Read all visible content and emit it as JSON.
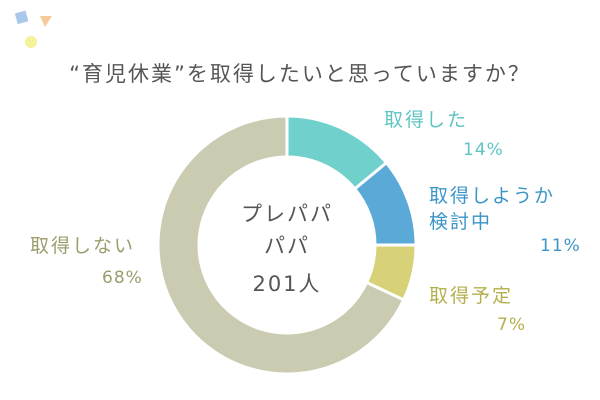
{
  "chart_data": {
    "type": "donut",
    "title": "“育児休業”を取得したいと思っていますか？",
    "center_lines": [
      "プレパパ",
      "パパ",
      "201人"
    ],
    "categories": [
      "取得した",
      "取得しようか\n検討中",
      "取得予定",
      "取得しない"
    ],
    "values": [
      14,
      11,
      7,
      68
    ],
    "value_labels": [
      "14%",
      "11%",
      "7%",
      "68%"
    ],
    "colors": [
      "#6fd0cc",
      "#5aa9d6",
      "#d7d277",
      "#cbcbb1"
    ],
    "label_colors": [
      "#5ec4c2",
      "#3b95c7",
      "#b4af4d",
      "#9c9c6c"
    ]
  }
}
